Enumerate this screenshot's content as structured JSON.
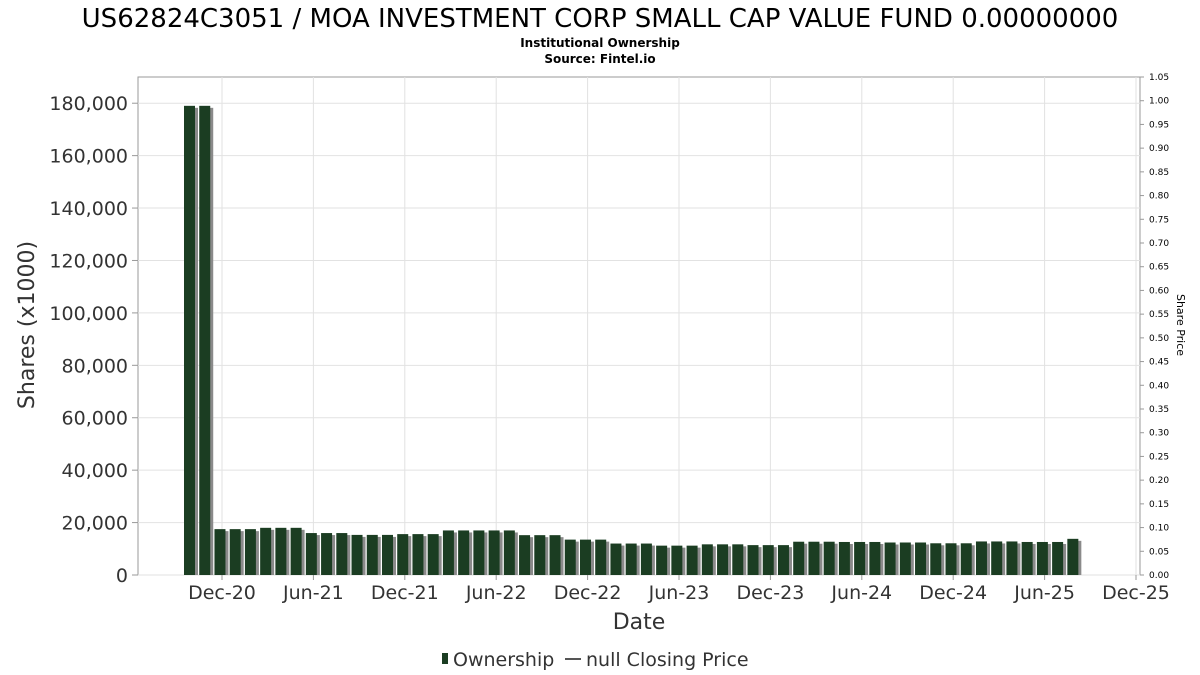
{
  "chart_data": {
    "type": "bar",
    "title": "US62824C3051 / MOA INVESTMENT CORP SMALL CAP VALUE FUND 0.00000000",
    "subtitle": "Institutional Ownership",
    "source": "Source: Fintel.io",
    "xlabel": "Date",
    "ylabel": "Shares (x1000)",
    "y2label": "Share Price",
    "ylim": [
      0,
      190000
    ],
    "y2lim": [
      0,
      1.05
    ],
    "yticks": [
      "0",
      "20,000",
      "40,000",
      "60,000",
      "80,000",
      "100,000",
      "120,000",
      "140,000",
      "160,000",
      "180,000"
    ],
    "y2ticks": [
      "0.00",
      "0.05",
      "0.10",
      "0.15",
      "0.20",
      "0.25",
      "0.30",
      "0.35",
      "0.40",
      "0.45",
      "0.50",
      "0.55",
      "0.60",
      "0.65",
      "0.70",
      "0.75",
      "0.80",
      "0.85",
      "0.90",
      "0.95",
      "1.00",
      "1.05"
    ],
    "xticks": [
      "Dec-20",
      "Jun-21",
      "Dec-21",
      "Jun-22",
      "Dec-22",
      "Jun-23",
      "Dec-23",
      "Jun-24",
      "Dec-24",
      "Jun-25",
      "Dec-25"
    ],
    "grid": true,
    "legend_position": "bottom",
    "series": [
      {
        "name": "Ownership",
        "color": "#1b3d22",
        "values": [
          179000,
          179000,
          17500,
          17500,
          17500,
          18000,
          18000,
          18000,
          16000,
          16000,
          16000,
          15300,
          15300,
          15300,
          15600,
          15600,
          15600,
          17000,
          17000,
          17000,
          17000,
          17000,
          15200,
          15200,
          15200,
          13500,
          13500,
          13500,
          12000,
          12000,
          12000,
          11200,
          11200,
          11200,
          11700,
          11700,
          11700,
          11400,
          11400,
          11400,
          12700,
          12700,
          12700,
          12600,
          12600,
          12600,
          12400,
          12400,
          12400,
          12100,
          12100,
          12100,
          12800,
          12800,
          12800,
          12600,
          12600,
          12600,
          13800
        ]
      },
      {
        "name": "null Closing Price",
        "color": "#555555",
        "values": []
      }
    ]
  }
}
